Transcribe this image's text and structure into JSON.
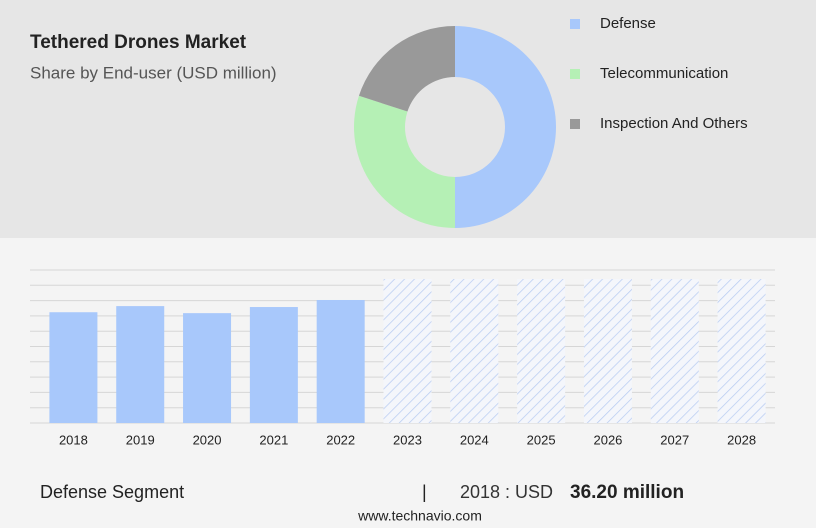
{
  "chart_data": [
    {
      "type": "pie",
      "title": "Tethered Drones Market",
      "subtitle": "Share by End-user (USD million)",
      "categories": [
        "Defense",
        "Telecommunication",
        "Inspection And Others"
      ],
      "values": [
        50,
        30,
        20
      ],
      "colors": [
        "#a8c8fb",
        "#b5f0b5",
        "#999999"
      ]
    },
    {
      "type": "bar",
      "categories": [
        "2018",
        "2019",
        "2020",
        "2021",
        "2022",
        "2023",
        "2024",
        "2025",
        "2026",
        "2027",
        "2028"
      ],
      "values": [
        36.2,
        38.2,
        35.9,
        37.9,
        40.2,
        null,
        null,
        null,
        null,
        null,
        null
      ],
      "color": "#a8c8fb",
      "ylim": [
        0,
        50
      ],
      "yticks": [
        0,
        5,
        10,
        15,
        20,
        25,
        30,
        35,
        40,
        45,
        50
      ],
      "grid": true
    }
  ],
  "footer": {
    "segment": "Defense Segment",
    "separator": "|",
    "year_label": "2018 : USD",
    "value": "36.20 million",
    "source": "www.technavio.com"
  }
}
